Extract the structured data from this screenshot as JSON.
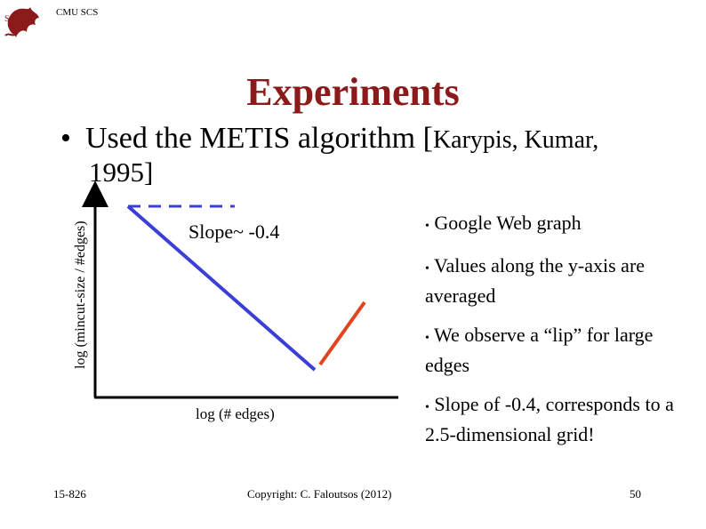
{
  "header": {
    "org": "CMU SCS",
    "logo_icon": "cmu-dragon-seal-icon"
  },
  "title": "Experiments",
  "bullet_main": {
    "marker": "•",
    "text_large": "Used the METIS algorithm [",
    "text_small": "Karypis, Kumar,",
    "text_year": "1995]"
  },
  "plot": {
    "ylabel": "log (mincut-size / #edges)",
    "xlabel": "log (# edges)",
    "slope_label": "Slope~ -0.4",
    "colors": {
      "main_line": "#3b3fd6",
      "lip_line": "#e0451e",
      "axis": "#000000"
    }
  },
  "right_bullets": [
    {
      "marker": "•",
      "text": "Google Web graph"
    },
    {
      "marker": "•",
      "text": "Values along the y-axis are averaged"
    },
    {
      "marker": "•",
      "text": "We observe a “lip” for large edges"
    },
    {
      "marker": "•",
      "text": "Slope of -0.4, corresponds to a 2.5-dimensional grid!"
    }
  ],
  "footer": {
    "left": "15-826",
    "center": "Copyright: C. Faloutsos (2012)",
    "right": "50"
  }
}
